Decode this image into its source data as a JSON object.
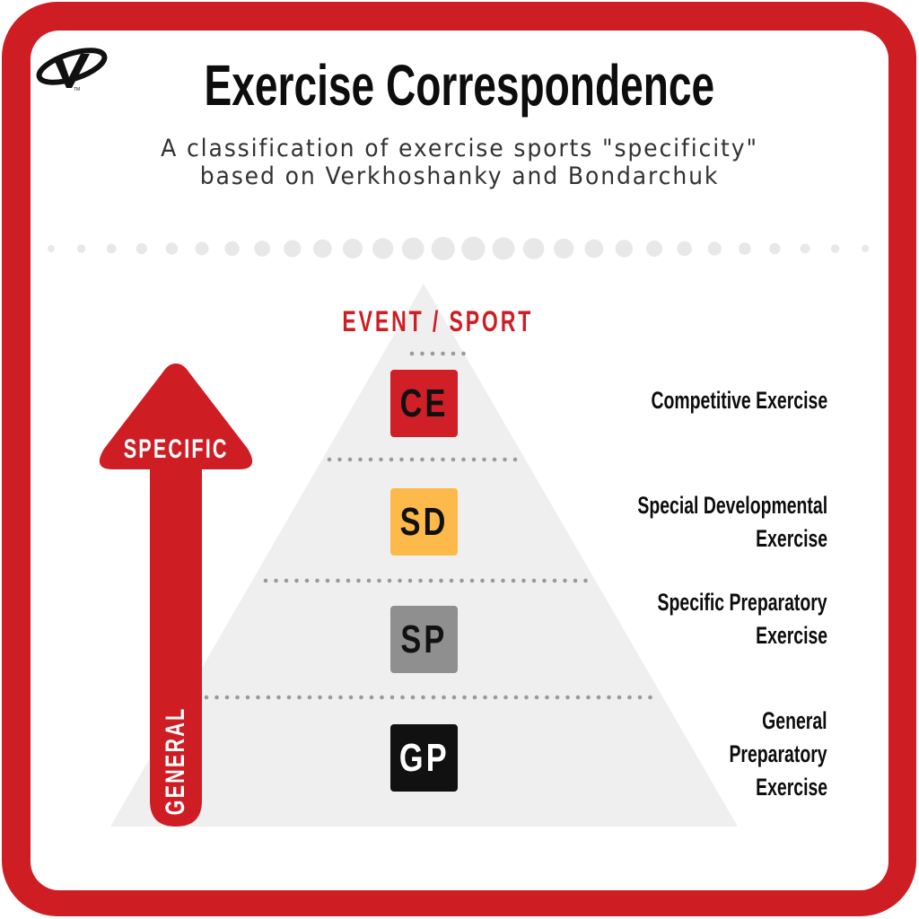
{
  "header": {
    "logo": "v-swoosh-logo",
    "title": "Exercise Correspondence",
    "subtitle_line1": "A classification of exercise sports \"specificity\"",
    "subtitle_line2": "based on Verkhoshanky and Bondarchuk"
  },
  "pyramid": {
    "apex_label": "EVENT / SPORT",
    "levels": [
      {
        "code": "CE",
        "name_lines": [
          "Competitive Exercise"
        ],
        "color": "#d01f26",
        "text_color": "#111111"
      },
      {
        "code": "SD",
        "name_lines": [
          "Special Developmental",
          "Exercise"
        ],
        "color": "#fdba4a",
        "text_color": "#111111"
      },
      {
        "code": "SP",
        "name_lines": [
          "Specific Preparatory",
          "Exercise"
        ],
        "color": "#8f8f8f",
        "text_color": "#111111"
      },
      {
        "code": "GP",
        "name_lines": [
          "General",
          "Preparatory",
          "Exercise"
        ],
        "color": "#111111",
        "text_color": "#ffffff"
      }
    ]
  },
  "arrow": {
    "top_label": "SPECIFIC",
    "bottom_label": "GENERAL",
    "color": "#cf1d24"
  },
  "colors": {
    "frame": "#cf1d24",
    "triangle": "#f0eff0",
    "dots": "#e8e8e8",
    "divider_dots": "#9a9a9a"
  }
}
